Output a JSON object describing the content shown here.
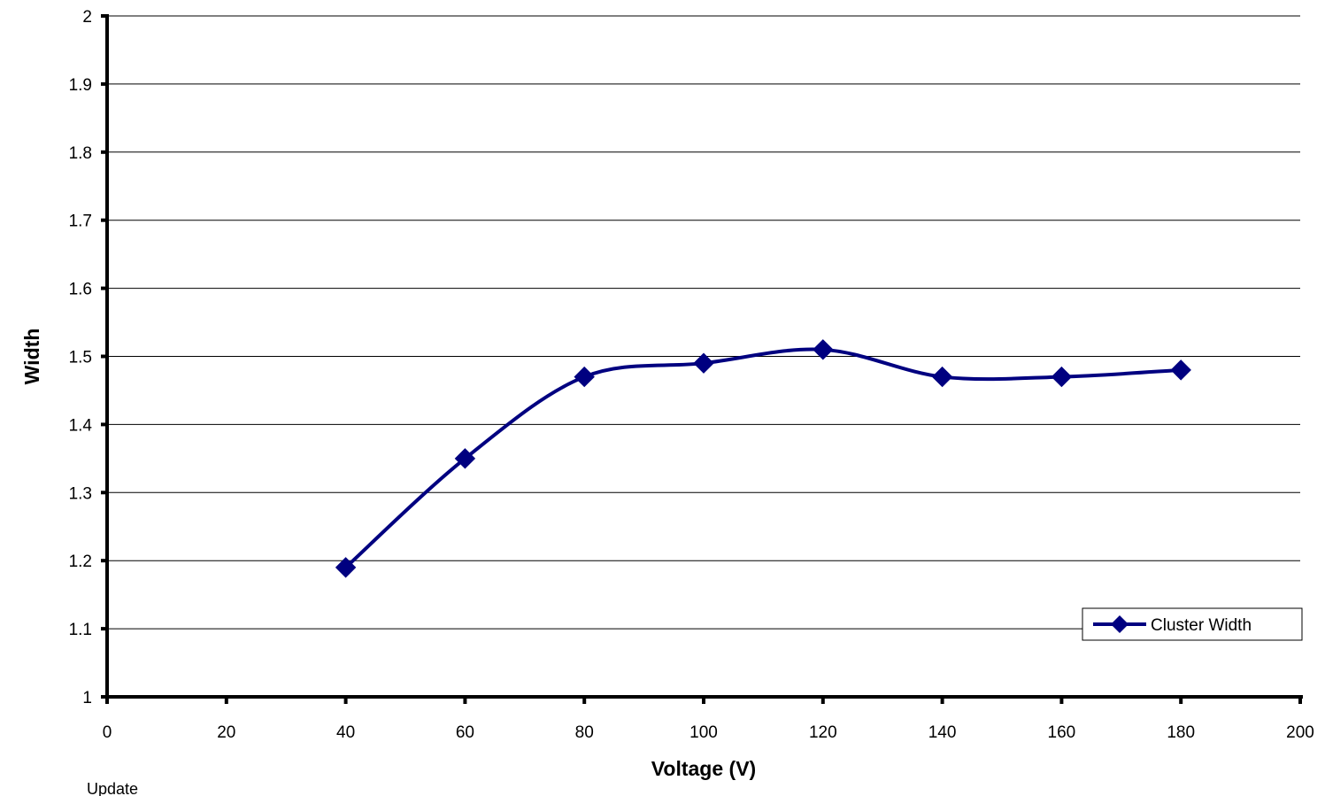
{
  "chart_data": {
    "type": "line",
    "xlabel": "Voltage (V)",
    "ylabel": "Width",
    "xlim": [
      0,
      200
    ],
    "ylim": [
      1,
      2
    ],
    "x_ticks": [
      0,
      20,
      40,
      60,
      80,
      100,
      120,
      140,
      160,
      180,
      200
    ],
    "y_ticks": [
      1,
      1.1,
      1.2,
      1.3,
      1.4,
      1.5,
      1.6,
      1.7,
      1.8,
      1.9,
      2
    ],
    "grid": "horizontal",
    "legend_position": "bottom-right",
    "series": [
      {
        "name": "Cluster Width",
        "x": [
          40,
          60,
          80,
          100,
          120,
          140,
          160,
          180
        ],
        "y": [
          1.19,
          1.35,
          1.47,
          1.49,
          1.51,
          1.47,
          1.47,
          1.48
        ],
        "color": "#000080",
        "marker": "diamond",
        "smooth": true
      }
    ],
    "annotations": [
      "Update"
    ]
  }
}
